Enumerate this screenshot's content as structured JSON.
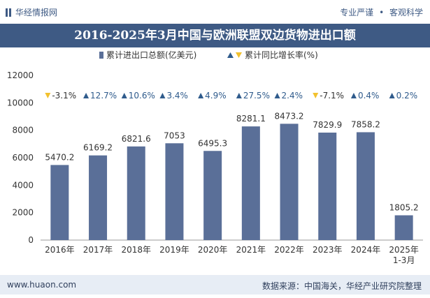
{
  "header": {
    "logo_text": "华经情报网",
    "tagline_left": "专业严谨",
    "tagline_sep": "•",
    "tagline_right": "客观科学"
  },
  "footer": {
    "website": "www.huaon.com",
    "source": "数据来源：中国海关，华经产业研究院整理"
  },
  "colors": {
    "bar": "#5a6f98",
    "up": "#2f5b8c",
    "down": "#f2c12e",
    "title_bg": "#3e5a84"
  },
  "chart_data": {
    "type": "bar",
    "title": "2016-2025年3月中国与欧洲联盟双边货物进出口额",
    "categories": [
      "2016年",
      "2017年",
      "2018年",
      "2019年",
      "2020年",
      "2021年",
      "2022年",
      "2023年",
      "2024年",
      "2025年\n1-3月"
    ],
    "series": [
      {
        "name": "累计进出口总额(亿美元)",
        "values": [
          5470.2,
          6169.2,
          6821.6,
          7053,
          6495.3,
          8281.1,
          8473.2,
          7829.9,
          7858.2,
          1805.2
        ],
        "labels": [
          "5470.2",
          "6169.2",
          "6821.6",
          "7053",
          "6495.3",
          "8281.1",
          "8473.2",
          "7829.9",
          "7858.2",
          "1805.2"
        ]
      },
      {
        "name": "累计同比增长率(%)",
        "values": [
          -3.1,
          12.7,
          10.6,
          3.4,
          4.9,
          27.5,
          2.4,
          -7.1,
          0.4,
          0.2
        ],
        "labels": [
          "-3.1%",
          "12.7%",
          "10.6%",
          "3.4%",
          "4.9%",
          "27.5%",
          "2.4%",
          "-7.1%",
          "0.4%",
          "0.2%"
        ]
      }
    ],
    "ylim": [
      0,
      12000
    ],
    "yticks": [
      "0",
      "2000",
      "4000",
      "6000",
      "8000",
      "10000",
      "12000"
    ],
    "legend_position": "top-center",
    "grid": false
  }
}
